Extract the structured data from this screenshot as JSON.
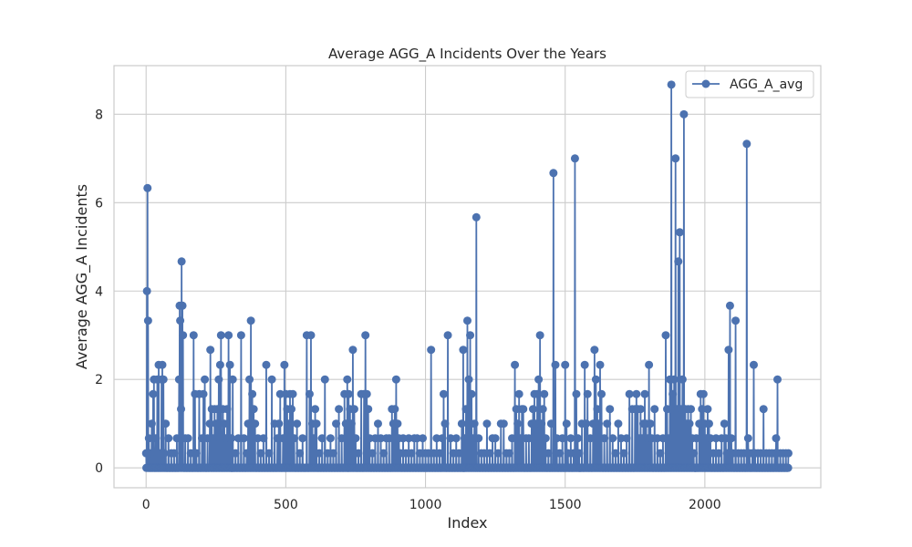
{
  "chart_data": {
    "type": "line",
    "title": "Average AGG_A Incidents Over the Years",
    "xlabel": "Index",
    "ylabel": "Average AGG_A Incidents",
    "xlim": [
      -115,
      2415
    ],
    "ylim": [
      -0.45,
      9.1
    ],
    "xticks": [
      0,
      500,
      1000,
      1500,
      2000
    ],
    "yticks": [
      0,
      2,
      4,
      6,
      8
    ],
    "grid": true,
    "legend_position": "top-right",
    "point_count": 2300,
    "baseline_value": 0,
    "series": [
      {
        "name": "AGG_A_avg",
        "color": "#4c72b0",
        "marker": "circle",
        "points": [
          [
            0,
            0.33
          ],
          [
            3,
            4.0
          ],
          [
            5,
            6.33
          ],
          [
            7,
            3.33
          ],
          [
            10,
            0.67
          ],
          [
            15,
            0.33
          ],
          [
            20,
            1.0
          ],
          [
            25,
            1.67
          ],
          [
            28,
            2.0
          ],
          [
            35,
            0.67
          ],
          [
            40,
            2.0
          ],
          [
            45,
            2.33
          ],
          [
            50,
            0.33
          ],
          [
            55,
            2.0
          ],
          [
            58,
            2.33
          ],
          [
            62,
            2.0
          ],
          [
            65,
            0.33
          ],
          [
            70,
            1.0
          ],
          [
            80,
            0.67
          ],
          [
            90,
            0.33
          ],
          [
            100,
            0.33
          ],
          [
            110,
            0.67
          ],
          [
            118,
            2.0
          ],
          [
            120,
            3.67
          ],
          [
            122,
            3.33
          ],
          [
            125,
            1.33
          ],
          [
            127,
            4.67
          ],
          [
            130,
            3.67
          ],
          [
            132,
            3.0
          ],
          [
            140,
            0.67
          ],
          [
            150,
            0.67
          ],
          [
            160,
            0.33
          ],
          [
            170,
            3.0
          ],
          [
            175,
            1.67
          ],
          [
            180,
            0.33
          ],
          [
            190,
            1.67
          ],
          [
            200,
            0.67
          ],
          [
            205,
            1.67
          ],
          [
            210,
            2.0
          ],
          [
            220,
            0.67
          ],
          [
            228,
            1.0
          ],
          [
            230,
            2.67
          ],
          [
            235,
            1.33
          ],
          [
            240,
            0.67
          ],
          [
            245,
            1.33
          ],
          [
            250,
            1.0
          ],
          [
            255,
            1.33
          ],
          [
            260,
            2.0
          ],
          [
            265,
            2.33
          ],
          [
            268,
            3.0
          ],
          [
            275,
            1.33
          ],
          [
            280,
            1.0
          ],
          [
            285,
            0.67
          ],
          [
            290,
            1.33
          ],
          [
            295,
            3.0
          ],
          [
            300,
            2.33
          ],
          [
            305,
            0.67
          ],
          [
            310,
            2.0
          ],
          [
            320,
            0.33
          ],
          [
            330,
            0.67
          ],
          [
            340,
            3.0
          ],
          [
            350,
            0.67
          ],
          [
            360,
            0.33
          ],
          [
            365,
            1.0
          ],
          [
            370,
            2.0
          ],
          [
            375,
            3.33
          ],
          [
            380,
            1.67
          ],
          [
            385,
            1.33
          ],
          [
            390,
            1.0
          ],
          [
            400,
            0.67
          ],
          [
            410,
            0.33
          ],
          [
            420,
            0.67
          ],
          [
            430,
            2.33
          ],
          [
            440,
            0.33
          ],
          [
            450,
            2.0
          ],
          [
            460,
            1.0
          ],
          [
            470,
            0.67
          ],
          [
            475,
            1.0
          ],
          [
            480,
            1.67
          ],
          [
            490,
            0.67
          ],
          [
            495,
            2.33
          ],
          [
            500,
            1.67
          ],
          [
            505,
            1.33
          ],
          [
            510,
            1.0
          ],
          [
            515,
            1.67
          ],
          [
            520,
            1.33
          ],
          [
            525,
            1.67
          ],
          [
            530,
            0.67
          ],
          [
            540,
            1.0
          ],
          [
            550,
            0.33
          ],
          [
            560,
            0.67
          ],
          [
            575,
            3.0
          ],
          [
            585,
            1.67
          ],
          [
            590,
            3.0
          ],
          [
            595,
            1.0
          ],
          [
            600,
            0.67
          ],
          [
            605,
            1.33
          ],
          [
            610,
            1.0
          ],
          [
            620,
            0.33
          ],
          [
            630,
            0.67
          ],
          [
            640,
            2.0
          ],
          [
            650,
            0.33
          ],
          [
            660,
            0.67
          ],
          [
            670,
            0.33
          ],
          [
            680,
            1.0
          ],
          [
            690,
            1.33
          ],
          [
            700,
            0.67
          ],
          [
            710,
            1.67
          ],
          [
            715,
            1.0
          ],
          [
            720,
            2.0
          ],
          [
            725,
            1.67
          ],
          [
            730,
            1.33
          ],
          [
            735,
            1.0
          ],
          [
            740,
            2.67
          ],
          [
            745,
            1.33
          ],
          [
            750,
            0.67
          ],
          [
            760,
            0.33
          ],
          [
            770,
            1.67
          ],
          [
            780,
            1.67
          ],
          [
            785,
            3.0
          ],
          [
            790,
            1.67
          ],
          [
            795,
            1.33
          ],
          [
            800,
            0.67
          ],
          [
            810,
            0.33
          ],
          [
            820,
            0.67
          ],
          [
            830,
            1.0
          ],
          [
            840,
            0.67
          ],
          [
            850,
            0.33
          ],
          [
            860,
            0.67
          ],
          [
            870,
            0.67
          ],
          [
            880,
            1.33
          ],
          [
            885,
            1.0
          ],
          [
            890,
            1.33
          ],
          [
            895,
            2.0
          ],
          [
            900,
            1.0
          ],
          [
            905,
            0.67
          ],
          [
            910,
            0.33
          ],
          [
            920,
            0.67
          ],
          [
            930,
            0.33
          ],
          [
            940,
            0.67
          ],
          [
            950,
            0.33
          ],
          [
            960,
            0.67
          ],
          [
            970,
            0.67
          ],
          [
            980,
            0.33
          ],
          [
            990,
            0.67
          ],
          [
            1000,
            0.33
          ],
          [
            1010,
            0.33
          ],
          [
            1020,
            2.67
          ],
          [
            1030,
            0.33
          ],
          [
            1040,
            0.67
          ],
          [
            1050,
            0.33
          ],
          [
            1060,
            0.67
          ],
          [
            1065,
            1.67
          ],
          [
            1070,
            1.0
          ],
          [
            1080,
            3.0
          ],
          [
            1090,
            0.67
          ],
          [
            1100,
            0.33
          ],
          [
            1110,
            0.67
          ],
          [
            1120,
            0.33
          ],
          [
            1130,
            1.0
          ],
          [
            1135,
            2.67
          ],
          [
            1140,
            0.67
          ],
          [
            1145,
            1.33
          ],
          [
            1150,
            3.33
          ],
          [
            1155,
            2.0
          ],
          [
            1160,
            3.0
          ],
          [
            1165,
            1.67
          ],
          [
            1170,
            0.67
          ],
          [
            1175,
            1.0
          ],
          [
            1182,
            5.67
          ],
          [
            1190,
            0.67
          ],
          [
            1200,
            0.33
          ],
          [
            1210,
            0.33
          ],
          [
            1220,
            1.0
          ],
          [
            1230,
            0.33
          ],
          [
            1240,
            0.67
          ],
          [
            1250,
            0.67
          ],
          [
            1260,
            0.33
          ],
          [
            1270,
            1.0
          ],
          [
            1280,
            1.0
          ],
          [
            1290,
            0.33
          ],
          [
            1300,
            0.33
          ],
          [
            1310,
            0.67
          ],
          [
            1320,
            2.33
          ],
          [
            1325,
            1.33
          ],
          [
            1330,
            1.0
          ],
          [
            1335,
            1.67
          ],
          [
            1340,
            0.67
          ],
          [
            1345,
            1.33
          ],
          [
            1350,
            1.33
          ],
          [
            1360,
            0.67
          ],
          [
            1370,
            0.67
          ],
          [
            1380,
            1.0
          ],
          [
            1385,
            1.33
          ],
          [
            1390,
            1.67
          ],
          [
            1395,
            1.0
          ],
          [
            1400,
            1.67
          ],
          [
            1405,
            2.0
          ],
          [
            1410,
            3.0
          ],
          [
            1415,
            1.0
          ],
          [
            1420,
            1.33
          ],
          [
            1425,
            1.67
          ],
          [
            1430,
            0.67
          ],
          [
            1440,
            0.33
          ],
          [
            1450,
            1.0
          ],
          [
            1458,
            6.67
          ],
          [
            1465,
            2.33
          ],
          [
            1470,
            0.67
          ],
          [
            1480,
            0.33
          ],
          [
            1490,
            0.67
          ],
          [
            1500,
            2.33
          ],
          [
            1505,
            1.0
          ],
          [
            1510,
            0.33
          ],
          [
            1520,
            0.67
          ],
          [
            1530,
            0.33
          ],
          [
            1535,
            7.0
          ],
          [
            1540,
            1.67
          ],
          [
            1545,
            0.67
          ],
          [
            1550,
            0.33
          ],
          [
            1560,
            1.0
          ],
          [
            1570,
            2.33
          ],
          [
            1575,
            1.0
          ],
          [
            1580,
            1.67
          ],
          [
            1590,
            0.67
          ],
          [
            1600,
            1.0
          ],
          [
            1605,
            2.67
          ],
          [
            1610,
            2.0
          ],
          [
            1615,
            1.33
          ],
          [
            1620,
            1.0
          ],
          [
            1625,
            2.33
          ],
          [
            1630,
            1.67
          ],
          [
            1640,
            0.67
          ],
          [
            1650,
            1.0
          ],
          [
            1660,
            1.33
          ],
          [
            1670,
            0.67
          ],
          [
            1680,
            0.33
          ],
          [
            1690,
            1.0
          ],
          [
            1700,
            0.67
          ],
          [
            1710,
            0.33
          ],
          [
            1720,
            0.67
          ],
          [
            1730,
            1.67
          ],
          [
            1740,
            1.33
          ],
          [
            1750,
            1.33
          ],
          [
            1755,
            1.67
          ],
          [
            1760,
            1.33
          ],
          [
            1765,
            0.67
          ],
          [
            1770,
            1.33
          ],
          [
            1775,
            0.67
          ],
          [
            1780,
            1.0
          ],
          [
            1785,
            1.67
          ],
          [
            1790,
            1.0
          ],
          [
            1795,
            0.67
          ],
          [
            1800,
            2.33
          ],
          [
            1805,
            1.0
          ],
          [
            1810,
            0.67
          ],
          [
            1820,
            1.33
          ],
          [
            1830,
            0.67
          ],
          [
            1840,
            0.33
          ],
          [
            1850,
            0.67
          ],
          [
            1860,
            3.0
          ],
          [
            1865,
            1.33
          ],
          [
            1870,
            0.67
          ],
          [
            1875,
            2.0
          ],
          [
            1880,
            8.67
          ],
          [
            1885,
            1.67
          ],
          [
            1890,
            2.0
          ],
          [
            1895,
            7.0
          ],
          [
            1900,
            1.33
          ],
          [
            1905,
            4.67
          ],
          [
            1910,
            5.33
          ],
          [
            1915,
            1.33
          ],
          [
            1920,
            2.0
          ],
          [
            1925,
            8.0
          ],
          [
            1930,
            1.33
          ],
          [
            1935,
            1.0
          ],
          [
            1940,
            1.33
          ],
          [
            1945,
            1.0
          ],
          [
            1950,
            1.33
          ],
          [
            1955,
            0.67
          ],
          [
            1960,
            0.33
          ],
          [
            1970,
            0.67
          ],
          [
            1980,
            1.0
          ],
          [
            1985,
            1.67
          ],
          [
            1990,
            1.33
          ],
          [
            1995,
            1.67
          ],
          [
            2000,
            1.0
          ],
          [
            2005,
            0.67
          ],
          [
            2010,
            1.33
          ],
          [
            2015,
            1.0
          ],
          [
            2020,
            0.67
          ],
          [
            2030,
            0.33
          ],
          [
            2040,
            0.67
          ],
          [
            2050,
            0.33
          ],
          [
            2060,
            0.67
          ],
          [
            2070,
            1.0
          ],
          [
            2075,
            0.67
          ],
          [
            2080,
            0.33
          ],
          [
            2085,
            2.67
          ],
          [
            2090,
            3.67
          ],
          [
            2095,
            0.67
          ],
          [
            2100,
            0.33
          ],
          [
            2110,
            3.33
          ],
          [
            2120,
            0.33
          ],
          [
            2130,
            0.33
          ],
          [
            2140,
            0.33
          ],
          [
            2150,
            7.33
          ],
          [
            2155,
            0.67
          ],
          [
            2160,
            0.33
          ],
          [
            2170,
            0.33
          ],
          [
            2175,
            2.33
          ],
          [
            2180,
            0.33
          ],
          [
            2190,
            0.33
          ],
          [
            2200,
            0.33
          ],
          [
            2210,
            1.33
          ],
          [
            2220,
            0.33
          ],
          [
            2230,
            0.33
          ],
          [
            2240,
            0.33
          ],
          [
            2250,
            0.33
          ],
          [
            2255,
            0.67
          ],
          [
            2260,
            2.0
          ],
          [
            2270,
            0.33
          ],
          [
            2280,
            0.33
          ],
          [
            2290,
            0.33
          ],
          [
            2299,
            0.33
          ]
        ]
      }
    ]
  }
}
